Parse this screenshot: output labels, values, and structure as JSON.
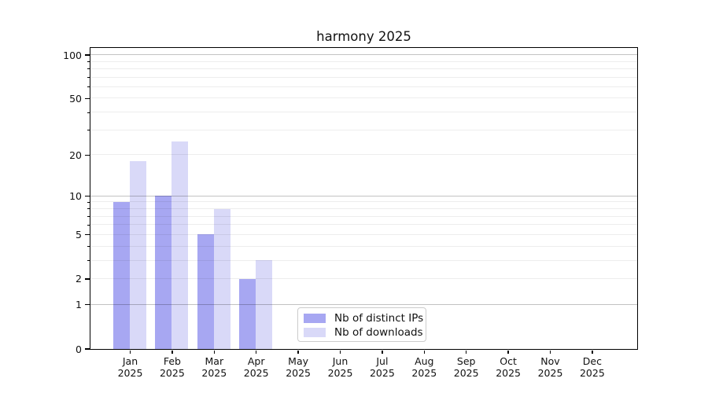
{
  "title": "harmony 2025",
  "chart_data": {
    "type": "bar",
    "title": "harmony 2025",
    "xlabel": "",
    "ylabel": "",
    "y_scale": "log1p",
    "ylim": [
      0,
      112
    ],
    "grid": true,
    "legend_position": "lower center",
    "categories": [
      "Jan",
      "Feb",
      "Mar",
      "Apr",
      "May",
      "Jun",
      "Jul",
      "Aug",
      "Sep",
      "Oct",
      "Nov",
      "Dec"
    ],
    "year_label": "2025",
    "series": [
      {
        "name": "Nb of distinct IPs",
        "color": "#a7a7f2",
        "values": [
          9,
          10,
          5,
          2,
          0,
          0,
          0,
          0,
          0,
          0,
          0,
          0
        ]
      },
      {
        "name": "Nb of downloads",
        "color": "#d9d9f8",
        "values": [
          18,
          25,
          8,
          3,
          0,
          0,
          0,
          0,
          0,
          0,
          0,
          0
        ]
      }
    ],
    "y_tick_values": [
      0,
      1,
      2,
      5,
      10,
      20,
      50,
      100
    ],
    "y_tick_labels": [
      "0",
      "1",
      "2",
      "5",
      "10",
      "20",
      "50",
      "100"
    ],
    "y_major_gridlines": [
      1,
      10,
      100
    ],
    "y_minor_gridlines": [
      2,
      3,
      4,
      5,
      6,
      7,
      8,
      9,
      20,
      30,
      40,
      50,
      60,
      70,
      80,
      90
    ]
  },
  "colors": {
    "bar_distinct_ips": "#a7a7f2",
    "bar_downloads": "#d9d9f8",
    "spine": "#000000",
    "major_grid": "#c2c2c2",
    "minor_grid": "#ededed",
    "legend_border": "#cccccc",
    "background": "#ffffff"
  }
}
